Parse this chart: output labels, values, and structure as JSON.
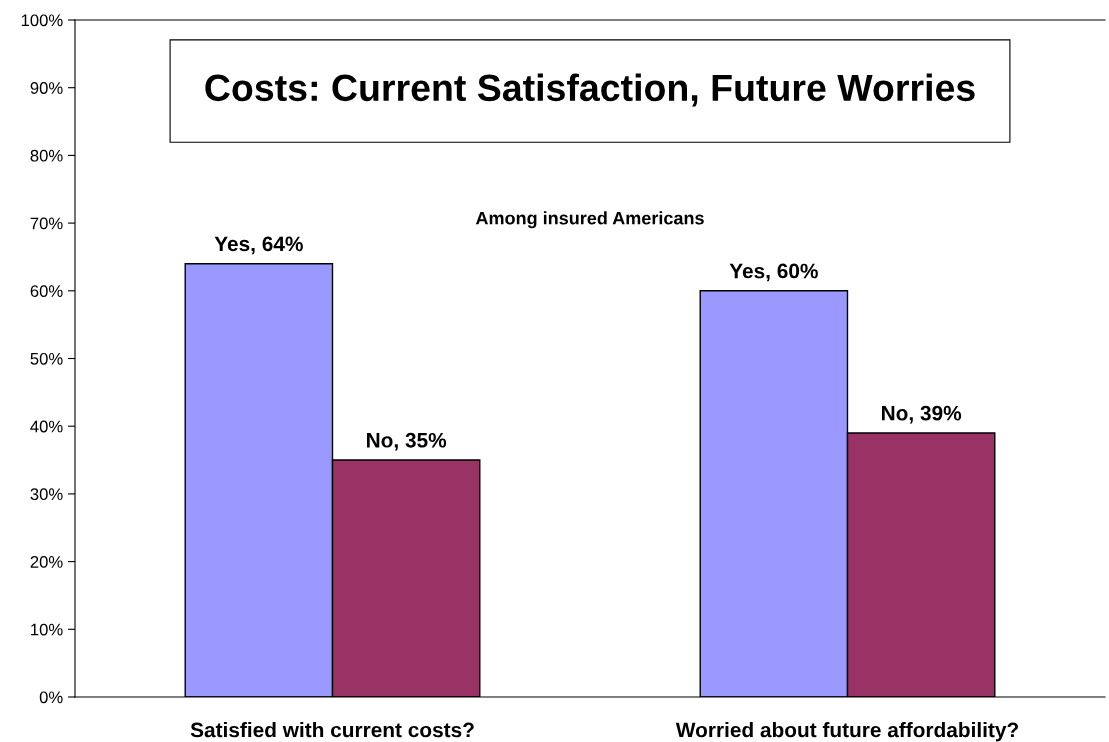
{
  "chart_data": {
    "type": "bar",
    "title": "Costs: Current Satisfaction, Future Worries",
    "annotations": [
      "Among insured Americans"
    ],
    "categories": [
      "Satisfied with current costs?",
      "Worried about future affordability?"
    ],
    "series": [
      {
        "color": "#9999ff",
        "values": [
          64,
          60
        ],
        "value_labels": [
          "Yes, 64%",
          "Yes, 60%"
        ]
      },
      {
        "color": "#993366",
        "values": [
          35,
          39
        ],
        "value_labels": [
          "No, 35%",
          "No, 39%"
        ]
      }
    ],
    "ylim": [
      0,
      100
    ],
    "yticks": [
      {
        "value": 0,
        "label": "0%"
      },
      {
        "value": 10,
        "label": "10%"
      },
      {
        "value": 20,
        "label": "20%"
      },
      {
        "value": 30,
        "label": "30%"
      },
      {
        "value": 40,
        "label": "40%"
      },
      {
        "value": 50,
        "label": "50%"
      },
      {
        "value": 60,
        "label": "60%"
      },
      {
        "value": 70,
        "label": "70%"
      },
      {
        "value": 80,
        "label": "80%"
      },
      {
        "value": 90,
        "label": "90%"
      },
      {
        "value": 100,
        "label": "100%"
      }
    ],
    "grid": false,
    "legend": false
  }
}
